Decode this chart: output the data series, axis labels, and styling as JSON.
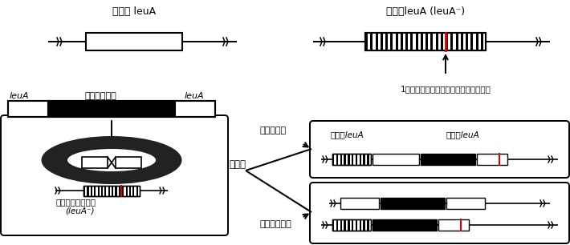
{
  "bg_color": "#ffffff",
  "black": "#000000",
  "red": "#dd0000",
  "dark": "#222222",
  "title_top_left": "野生型 leuA",
  "title_top_right": "変異型leuA (leuA⁻)",
  "annotation_right": "1塩基置換によりストップコドンが出現",
  "label_leua": "leuA",
  "label_cassette": "発現カセット",
  "label_leua2": "leuA",
  "label_recombination": "組換え",
  "label_homologous": "相同組換え",
  "label_nonhomologous": "非相同組換え",
  "label_leu_strain": "ロイシン要求性株",
  "label_leu_strain2": "(leuA⁻)",
  "box_homol_label1": "野生型leuA",
  "box_homol_label2": "変異型leuA"
}
